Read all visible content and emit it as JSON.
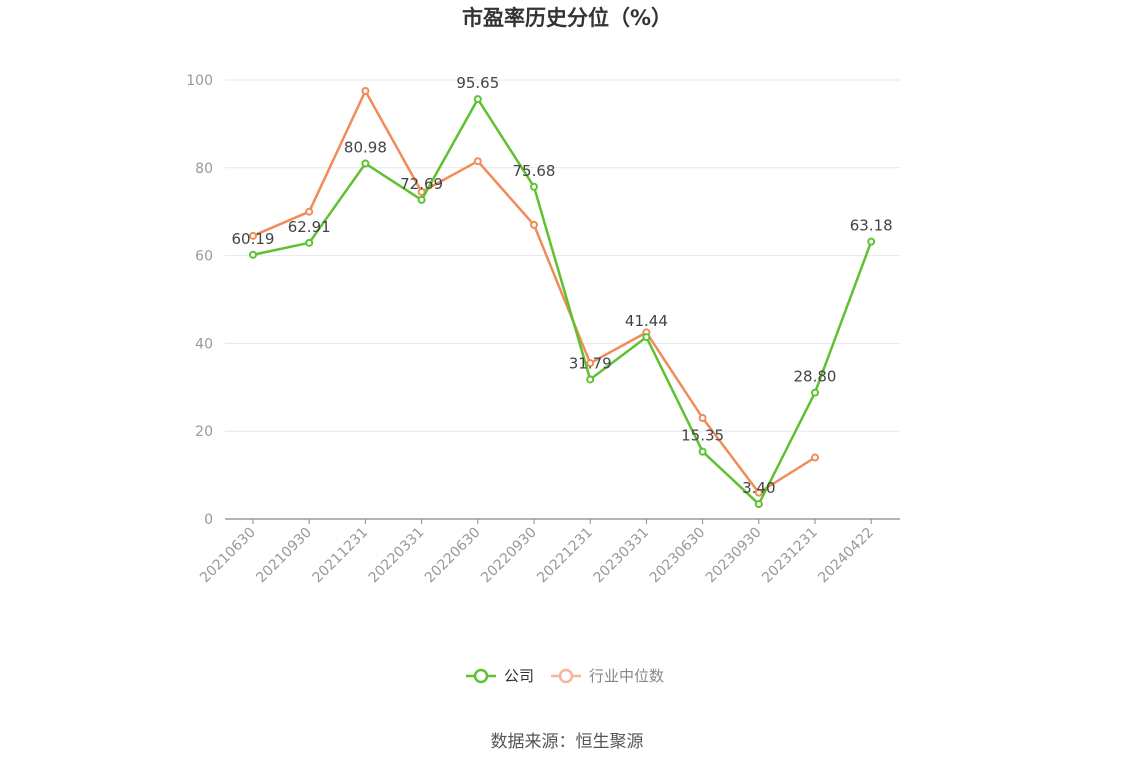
{
  "chart_data": {
    "type": "line",
    "title": "市盈率历史分位（%）",
    "xlabel": "",
    "ylabel": "",
    "categories": [
      "20210630",
      "20210930",
      "20211231",
      "20220331",
      "20220630",
      "20220930",
      "20221231",
      "20230331",
      "20230630",
      "20230930",
      "20231231",
      "20240422"
    ],
    "ylim": [
      0,
      100
    ],
    "yticks": [
      0,
      20,
      40,
      60,
      80,
      100
    ],
    "grid": true,
    "legend_position": "bottom",
    "series": [
      {
        "name": "公司",
        "color": "#5ec22f",
        "values": [
          60.19,
          62.91,
          80.98,
          72.69,
          95.65,
          75.68,
          31.79,
          41.44,
          15.35,
          3.4,
          28.8,
          63.18
        ],
        "labels": [
          "60.19",
          "62.91",
          "80.98",
          "72.69",
          "95.65",
          "75.68",
          "31.79",
          "41.44",
          "15.35",
          "3.40",
          "28.80",
          "63.18"
        ]
      },
      {
        "name": "行业中位数",
        "color": "#f08c5a",
        "legend_color": "#f5b79a",
        "values": [
          64.5,
          70.0,
          97.5,
          74.5,
          81.5,
          67.0,
          35.5,
          42.5,
          23.0,
          6.0,
          14.0,
          null
        ]
      }
    ]
  },
  "source": "数据来源：恒生聚源"
}
